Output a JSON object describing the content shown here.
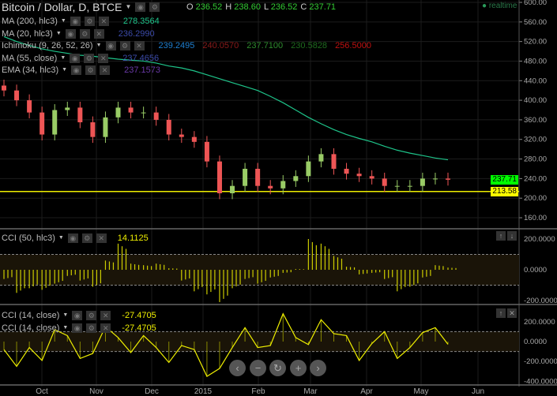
{
  "header": {
    "symbol": "Bitcoin / Dollar, D, BTCE",
    "o_label": "O",
    "o": "236.52",
    "h_label": "H",
    "h": "238.60",
    "l_label": "L",
    "l": "236.52",
    "c_label": "C",
    "c": "237.71",
    "realtime": "realtime"
  },
  "indicators": [
    {
      "name": "MA (200, hlc3)",
      "values": [
        "278.3564"
      ],
      "colors": [
        "#1ec48a"
      ]
    },
    {
      "name": "MA (20, hlc3)",
      "values": [
        "236.2990"
      ],
      "colors": [
        "#3b4aa8"
      ]
    },
    {
      "name": "Ichimoku (9, 26, 52, 26)",
      "values": [
        "239.2495",
        "240.0570",
        "237.7100",
        "230.5828",
        "256.5000"
      ],
      "colors": [
        "#1e7fd0",
        "#8b1a1a",
        "#2e8b2e",
        "#1e6b1e",
        "#c01010"
      ]
    },
    {
      "name": "MA (55, close)",
      "values": [
        "237.4656"
      ],
      "colors": [
        "#3b4aa8"
      ]
    },
    {
      "name": "EMA (34, hlc3)",
      "values": [
        "237.1573"
      ],
      "colors": [
        "#6a3aa8"
      ]
    }
  ],
  "cci1": {
    "name": "CCI (50, hlc3)",
    "value": "14.1125"
  },
  "cci2": [
    {
      "name": "CCI (14, close)",
      "value": "-27.4705"
    },
    {
      "name": "CCI (14, close)",
      "value": "-27.4705"
    }
  ],
  "price_tags": {
    "last": "237.71",
    "line": "213.58",
    "last_color": "#00ff00",
    "line_color": "#ffff00"
  },
  "nav": {
    "prev": "‹",
    "zoom_out": "−",
    "reset": "↻",
    "zoom_in": "+",
    "next": "›"
  },
  "chart_data": [
    {
      "type": "candlestick",
      "title": "Bitcoin / Dollar, D, BTCE",
      "ylim": [
        140,
        600
      ],
      "yticks": [
        "600.00",
        "560.00",
        "520.00",
        "480.00",
        "440.00",
        "400.00",
        "360.00",
        "320.00",
        "280.00",
        "240.00",
        "200.00",
        "160.00"
      ],
      "xticks": [
        "Oct",
        "Nov",
        "Dec",
        "2015",
        "Feb",
        "Mar",
        "Apr",
        "May",
        "Jun"
      ],
      "x": [
        "2014-09-14",
        "2014-09-21",
        "2014-09-28",
        "2014-10-05",
        "2014-10-12",
        "2014-10-19",
        "2014-10-26",
        "2014-11-02",
        "2014-11-09",
        "2014-11-16",
        "2014-11-23",
        "2014-11-30",
        "2014-12-07",
        "2014-12-14",
        "2014-12-21",
        "2014-12-28",
        "2015-01-04",
        "2015-01-11",
        "2015-01-18",
        "2015-01-25",
        "2015-02-01",
        "2015-02-08",
        "2015-02-15",
        "2015-02-22",
        "2015-03-01",
        "2015-03-08",
        "2015-03-15",
        "2015-03-22",
        "2015-03-29",
        "2015-04-05",
        "2015-04-12",
        "2015-04-19",
        "2015-04-26",
        "2015-05-03",
        "2015-05-10",
        "2015-05-15"
      ],
      "close": [
        420,
        400,
        375,
        330,
        380,
        385,
        355,
        325,
        365,
        385,
        375,
        375,
        360,
        330,
        325,
        315,
        275,
        210,
        225,
        260,
        225,
        220,
        235,
        245,
        275,
        290,
        260,
        250,
        245,
        240,
        225,
        225,
        225,
        240,
        240,
        237.71
      ],
      "ma200": [
        530,
        520,
        512,
        505,
        500,
        496,
        492,
        490,
        487,
        484,
        482,
        480,
        476,
        470,
        466,
        460,
        452,
        444,
        436,
        428,
        420,
        408,
        395,
        380,
        365,
        352,
        340,
        330,
        322,
        315,
        306,
        298,
        292,
        287,
        282,
        278.36
      ],
      "horizontal_line": 213.58
    },
    {
      "type": "bar",
      "name": "CCI (50, hlc3)",
      "ylim": [
        -230,
        240
      ],
      "yticks": [
        "200.0000",
        "0.0000",
        "-200.0000"
      ],
      "bands": [
        100,
        -100
      ],
      "values": [
        -60,
        -150,
        -120,
        -130,
        -90,
        -40,
        -70,
        -110,
        60,
        170,
        40,
        30,
        40,
        10,
        -70,
        -140,
        -160,
        -210,
        -120,
        -60,
        -90,
        -50,
        -20,
        5,
        200,
        170,
        90,
        20,
        -30,
        -20,
        -60,
        -140,
        -110,
        -50,
        30,
        14.11
      ]
    },
    {
      "type": "line",
      "name": "CCI (14, close)",
      "ylim": [
        -420,
        340
      ],
      "yticks": [
        "200.0000",
        "0.0000",
        "-200.0000",
        "-400.0000"
      ],
      "bands": [
        100,
        -100
      ],
      "values": [
        -80,
        -250,
        -60,
        -190,
        120,
        60,
        -170,
        -120,
        150,
        40,
        -110,
        60,
        -60,
        -210,
        -40,
        -80,
        -350,
        -270,
        -60,
        140,
        -60,
        -40,
        280,
        40,
        -30,
        220,
        80,
        60,
        -190,
        -20,
        100,
        -170,
        -60,
        90,
        140,
        -27.47
      ]
    }
  ]
}
